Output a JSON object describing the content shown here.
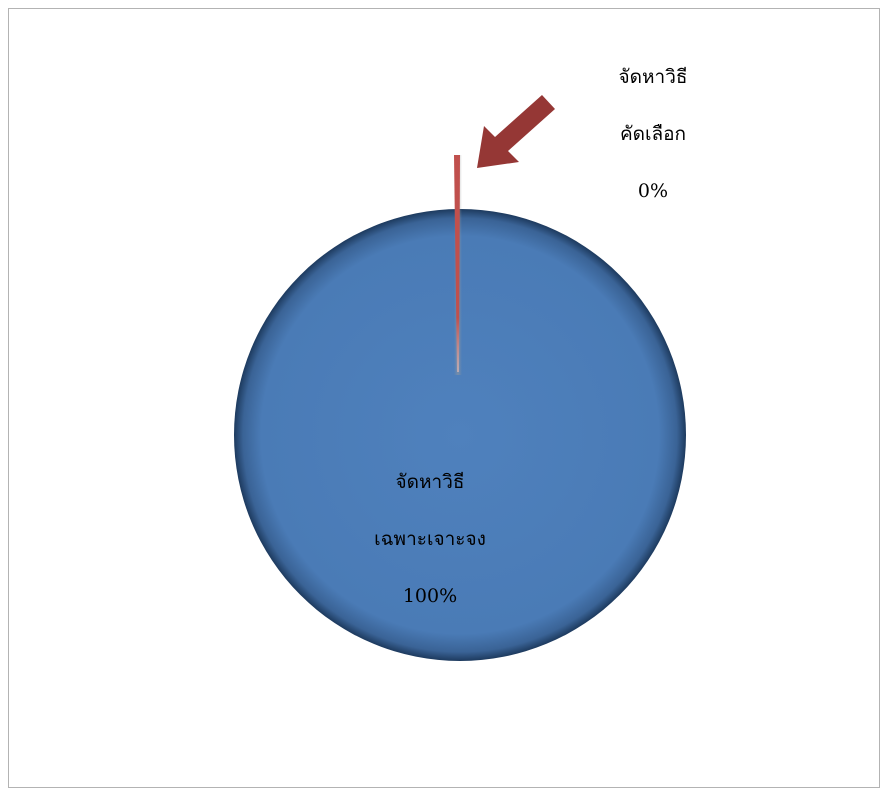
{
  "chart_data": {
    "type": "pie",
    "exploded": true,
    "slices": [
      {
        "label_line1": "จัดหาวิธี",
        "label_line2": "คัดเลือก",
        "value": 0,
        "percent_label": "0%",
        "color": "#C0504D"
      },
      {
        "label_line1": "จัดหาวิธี",
        "label_line2": "เฉพาะเจาะจง",
        "value": 100,
        "percent_label": "100%",
        "color": "#4F81BD"
      }
    ],
    "arrow_color": "#953735"
  }
}
